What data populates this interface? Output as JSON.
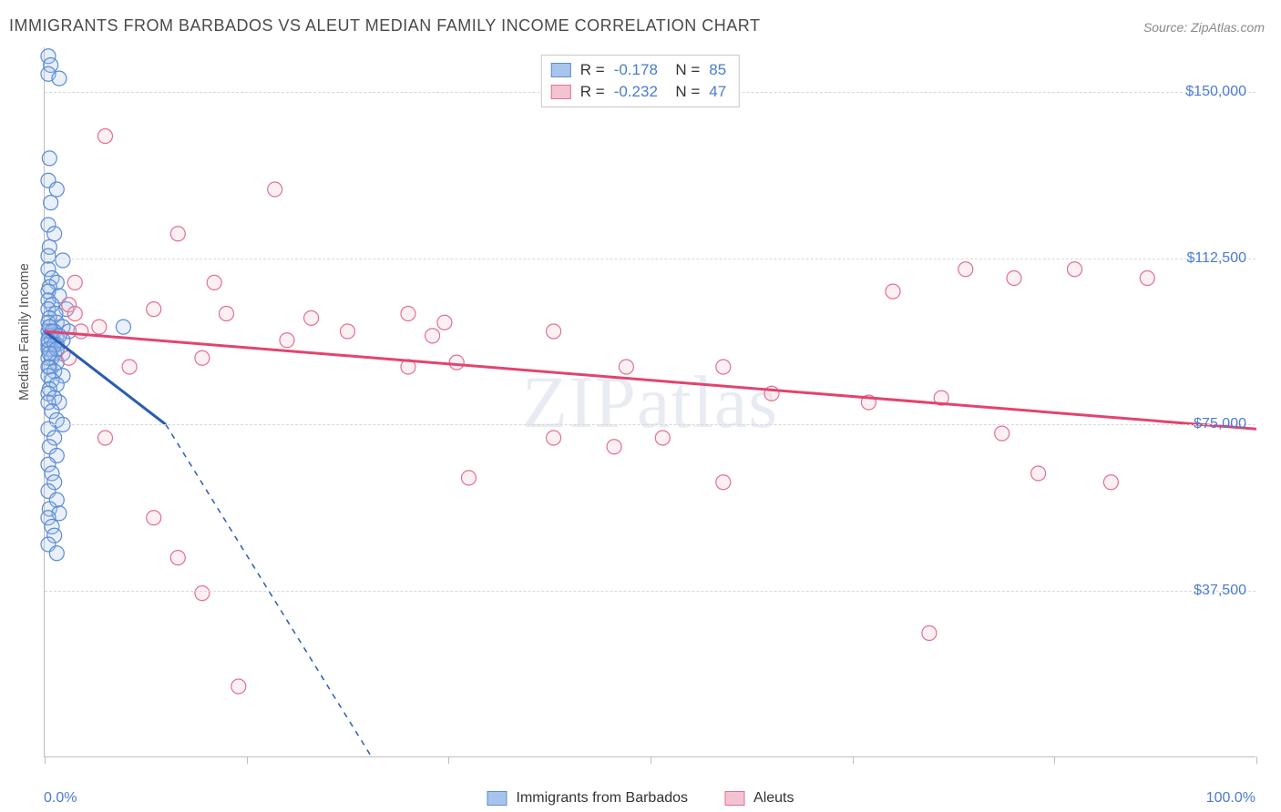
{
  "title": "IMMIGRANTS FROM BARBADOS VS ALEUT MEDIAN FAMILY INCOME CORRELATION CHART",
  "source": "Source: ZipAtlas.com",
  "watermark": "ZIPatlas",
  "chart": {
    "type": "scatter",
    "x_axis": {
      "min_label": "0.0%",
      "max_label": "100.0%",
      "xlim": [
        0,
        100
      ],
      "ticks": [
        0,
        16.67,
        33.33,
        50,
        66.67,
        83.33,
        100
      ]
    },
    "y_axis": {
      "title": "Median Family Income",
      "ylim": [
        0,
        160000
      ],
      "gridlines": [
        37500,
        75000,
        112500,
        150000
      ],
      "tick_labels": [
        "$37,500",
        "$75,000",
        "$112,500",
        "$150,000"
      ]
    },
    "background_color": "#ffffff",
    "grid_color": "#d8d8d8",
    "axis_color": "#bdbdbd",
    "marker_radius": 8,
    "series": [
      {
        "name": "Immigrants from Barbados",
        "key": "barbados",
        "fill": "#a9c4ec",
        "stroke": "#5b8bd4",
        "line_color": "#2a5db0",
        "R": "-0.178",
        "N": "85",
        "trend": {
          "x1": 0,
          "y1": 96000,
          "x2": 10,
          "y2": 75000,
          "dash_x2": 27,
          "dash_y2": 0
        },
        "points": [
          [
            0.3,
            158000
          ],
          [
            0.5,
            156000
          ],
          [
            0.3,
            154000
          ],
          [
            1.2,
            153000
          ],
          [
            0.4,
            135000
          ],
          [
            0.3,
            130000
          ],
          [
            1.0,
            128000
          ],
          [
            0.5,
            125000
          ],
          [
            0.3,
            120000
          ],
          [
            0.8,
            118000
          ],
          [
            0.4,
            115000
          ],
          [
            0.3,
            113000
          ],
          [
            1.5,
            112000
          ],
          [
            0.3,
            110000
          ],
          [
            0.6,
            108000
          ],
          [
            1.0,
            107000
          ],
          [
            0.4,
            106000
          ],
          [
            0.3,
            105000
          ],
          [
            1.2,
            104000
          ],
          [
            0.3,
            103000
          ],
          [
            0.6,
            102000
          ],
          [
            1.8,
            101000
          ],
          [
            0.3,
            101000
          ],
          [
            0.9,
            100000
          ],
          [
            0.4,
            99000
          ],
          [
            0.3,
            98000
          ],
          [
            1.0,
            98000
          ],
          [
            1.5,
            97000
          ],
          [
            0.4,
            97000
          ],
          [
            0.3,
            96000
          ],
          [
            0.8,
            96000
          ],
          [
            2.0,
            96000
          ],
          [
            6.5,
            97000
          ],
          [
            0.4,
            95000
          ],
          [
            1.0,
            95000
          ],
          [
            0.3,
            94000
          ],
          [
            0.6,
            94000
          ],
          [
            1.5,
            94000
          ],
          [
            0.3,
            93000
          ],
          [
            1.0,
            93000
          ],
          [
            0.4,
            92000
          ],
          [
            0.3,
            92000
          ],
          [
            0.8,
            91000
          ],
          [
            1.5,
            91000
          ],
          [
            0.3,
            90000
          ],
          [
            0.6,
            90000
          ],
          [
            1.0,
            89000
          ],
          [
            0.4,
            88000
          ],
          [
            0.3,
            88000
          ],
          [
            0.8,
            87000
          ],
          [
            1.5,
            86000
          ],
          [
            0.3,
            86000
          ],
          [
            0.6,
            85000
          ],
          [
            1.0,
            84000
          ],
          [
            0.4,
            83000
          ],
          [
            0.3,
            82000
          ],
          [
            0.8,
            81000
          ],
          [
            1.2,
            80000
          ],
          [
            0.3,
            80000
          ],
          [
            0.6,
            78000
          ],
          [
            1.0,
            76000
          ],
          [
            1.5,
            75000
          ],
          [
            0.3,
            74000
          ],
          [
            0.8,
            72000
          ],
          [
            0.4,
            70000
          ],
          [
            1.0,
            68000
          ],
          [
            0.3,
            66000
          ],
          [
            0.6,
            64000
          ],
          [
            0.8,
            62000
          ],
          [
            0.3,
            60000
          ],
          [
            1.0,
            58000
          ],
          [
            0.4,
            56000
          ],
          [
            1.2,
            55000
          ],
          [
            0.3,
            54000
          ],
          [
            0.6,
            52000
          ],
          [
            0.8,
            50000
          ],
          [
            0.3,
            48000
          ],
          [
            1.0,
            46000
          ],
          [
            0.4,
            97000
          ],
          [
            0.6,
            96000
          ],
          [
            1.2,
            95000
          ],
          [
            0.3,
            94000
          ],
          [
            0.8,
            93000
          ],
          [
            1.0,
            92000
          ],
          [
            0.4,
            91000
          ]
        ]
      },
      {
        "name": "Aleuts",
        "key": "aleuts",
        "fill": "#f4c3d1",
        "stroke": "#e2708f",
        "line_color": "#e2446f",
        "R": "-0.232",
        "N": "47",
        "trend": {
          "x1": 0,
          "y1": 96000,
          "x2": 100,
          "y2": 74000
        },
        "points": [
          [
            5.0,
            140000
          ],
          [
            19,
            128000
          ],
          [
            11,
            118000
          ],
          [
            14,
            107000
          ],
          [
            2.5,
            107000
          ],
          [
            2,
            102000
          ],
          [
            2.5,
            100000
          ],
          [
            9,
            101000
          ],
          [
            15,
            100000
          ],
          [
            22,
            99000
          ],
          [
            30,
            100000
          ],
          [
            33,
            98000
          ],
          [
            3,
            96000
          ],
          [
            4.5,
            97000
          ],
          [
            20,
            94000
          ],
          [
            25,
            96000
          ],
          [
            32,
            95000
          ],
          [
            42,
            96000
          ],
          [
            2,
            90000
          ],
          [
            7,
            88000
          ],
          [
            13,
            90000
          ],
          [
            30,
            88000
          ],
          [
            34,
            89000
          ],
          [
            48,
            88000
          ],
          [
            56,
            88000
          ],
          [
            60,
            82000
          ],
          [
            51,
            72000
          ],
          [
            56,
            62000
          ],
          [
            35,
            63000
          ],
          [
            42,
            72000
          ],
          [
            47,
            70000
          ],
          [
            5,
            72000
          ],
          [
            9,
            54000
          ],
          [
            11,
            45000
          ],
          [
            13,
            37000
          ],
          [
            16,
            16000
          ],
          [
            68,
            80000
          ],
          [
            70,
            105000
          ],
          [
            74,
            81000
          ],
          [
            76,
            110000
          ],
          [
            79,
            73000
          ],
          [
            80,
            108000
          ],
          [
            82,
            64000
          ],
          [
            85,
            110000
          ],
          [
            88,
            62000
          ],
          [
            91,
            108000
          ],
          [
            73,
            28000
          ]
        ]
      }
    ]
  },
  "legend_bottom": [
    {
      "label": "Immigrants from Barbados",
      "fill": "#a9c4ec",
      "stroke": "#5b8bd4"
    },
    {
      "label": "Aleuts",
      "fill": "#f4c3d1",
      "stroke": "#e2708f"
    }
  ]
}
